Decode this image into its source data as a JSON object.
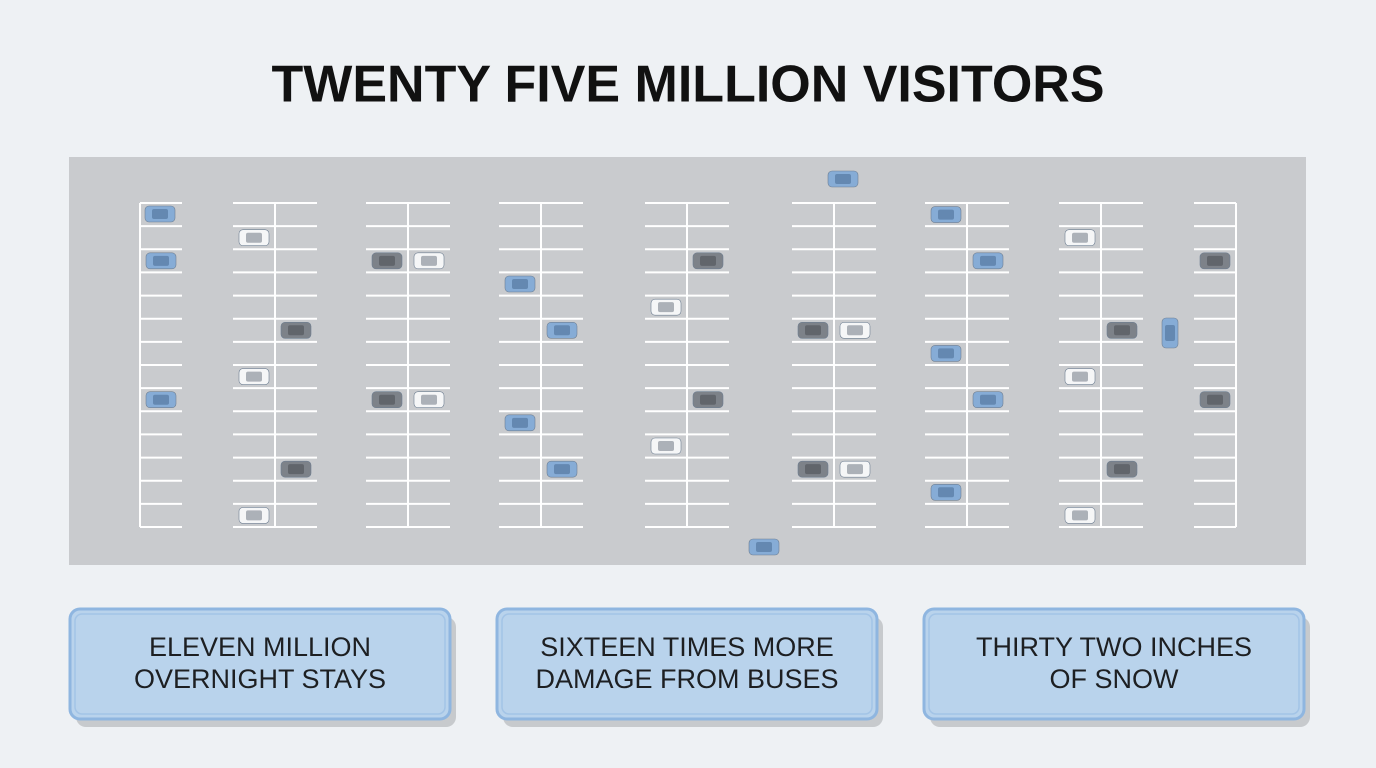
{
  "title": "TWENTY FIVE MILLION VISITORS",
  "cards": [
    {
      "lines": [
        "ELEVEN MILLION",
        "OVERNIGHT STAYS"
      ]
    },
    {
      "lines": [
        "SIXTEEN TIMES MORE",
        "DAMAGE FROM BUSES"
      ]
    },
    {
      "lines": [
        "THIRTY TWO INCHES",
        "OF SNOW"
      ]
    }
  ]
}
